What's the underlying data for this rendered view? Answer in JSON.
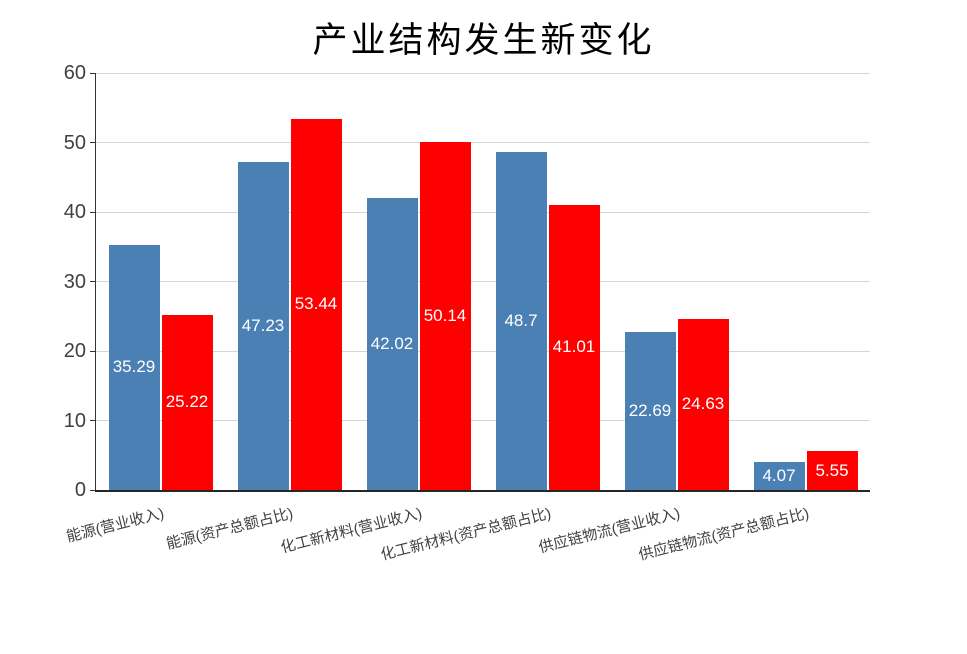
{
  "chart_data": {
    "type": "bar",
    "title": "产业结构发生新变化",
    "categories": [
      "能源(营业收入)",
      "能源(资产总额占比)",
      "化工新材料(营业收入)",
      "化工新材料(资产总额占比)",
      "供应链物流(营业收入)",
      "供应链物流(资产总额占比)"
    ],
    "series": [
      {
        "name": "blue-series",
        "color": "#4a80b4",
        "values": [
          35.29,
          47.23,
          42.02,
          48.7,
          22.69,
          4.07
        ]
      },
      {
        "name": "red-series",
        "color": "#ff0000",
        "values": [
          25.22,
          53.44,
          50.14,
          41.01,
          24.63,
          5.55
        ]
      }
    ],
    "ylim": [
      0,
      60
    ],
    "yticks": [
      0,
      10,
      20,
      30,
      40,
      50,
      60
    ],
    "grid": true,
    "legend": false,
    "value_labels": {
      "position": "center",
      "color": "#ffffff"
    }
  },
  "colors": {
    "bar_blue": "#4a80b4",
    "bar_red": "#ff0000",
    "gridline": "#d2d6d9",
    "axis": "#262626",
    "tick_label": "#404040",
    "value_label": "#ffffff",
    "background": "#ffffff"
  }
}
